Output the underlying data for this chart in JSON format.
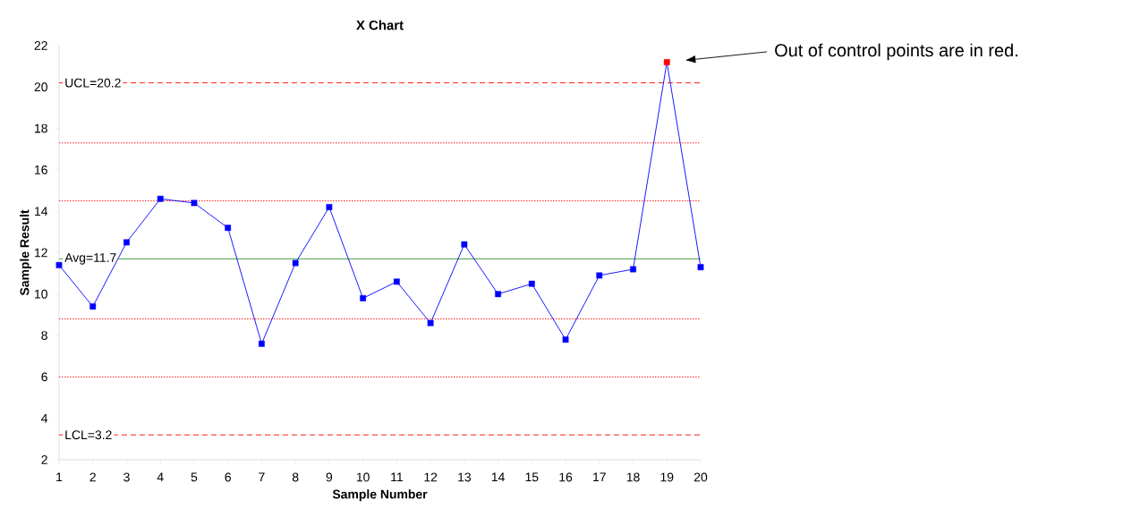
{
  "chart_data": {
    "type": "line",
    "title": "X Chart",
    "xlabel": "Sample Number",
    "ylabel": "Sample Result",
    "categories": [
      "1",
      "2",
      "3",
      "4",
      "5",
      "6",
      "7",
      "8",
      "9",
      "10",
      "11",
      "12",
      "13",
      "14",
      "15",
      "16",
      "17",
      "18",
      "19",
      "20"
    ],
    "series": [
      {
        "color": "#0000ff",
        "values": [
          11.4,
          9.4,
          12.5,
          14.6,
          14.4,
          13.2,
          7.6,
          11.5,
          14.2,
          9.8,
          10.6,
          8.6,
          12.4,
          10.0,
          10.5,
          7.8,
          10.9,
          11.2,
          21.2,
          11.3
        ],
        "colors": [
          "#0000ff",
          "#0000ff",
          "#0000ff",
          "#0000ff",
          "#0000ff",
          "#0000ff",
          "#0000ff",
          "#0000ff",
          "#0000ff",
          "#0000ff",
          "#0000ff",
          "#0000ff",
          "#0000ff",
          "#0000ff",
          "#0000ff",
          "#0000ff",
          "#0000ff",
          "#0000ff",
          "#ff0000",
          "#0000ff"
        ]
      }
    ],
    "marker": "square",
    "line_style": "solid",
    "grid": false,
    "ylim": [
      2,
      22
    ],
    "yticks": [
      2,
      4,
      6,
      8,
      10,
      12,
      14,
      16,
      18,
      20,
      22
    ],
    "ref_lines": [
      {
        "axis": "y",
        "value": 20.2,
        "label": "UCL=20.2",
        "color": "#ff0000",
        "line_style": "dashed"
      },
      {
        "axis": "y",
        "value": 17.3,
        "color": "#ff0000",
        "line_style": "dotted"
      },
      {
        "axis": "y",
        "value": 14.5,
        "color": "#ff0000",
        "line_style": "dotted"
      },
      {
        "axis": "y",
        "value": 11.7,
        "label": "Avg=11.7",
        "color": "#339933",
        "line_style": "solid"
      },
      {
        "axis": "y",
        "value": 8.8,
        "color": "#ff0000",
        "line_style": "dotted"
      },
      {
        "axis": "y",
        "value": 6.0,
        "color": "#ff0000",
        "line_style": "dotted"
      },
      {
        "axis": "y",
        "value": 3.2,
        "label": "LCL=3.2",
        "color": "#ff0000",
        "line_style": "dashed"
      }
    ],
    "annotations": [
      "Out of control points are in red."
    ]
  }
}
